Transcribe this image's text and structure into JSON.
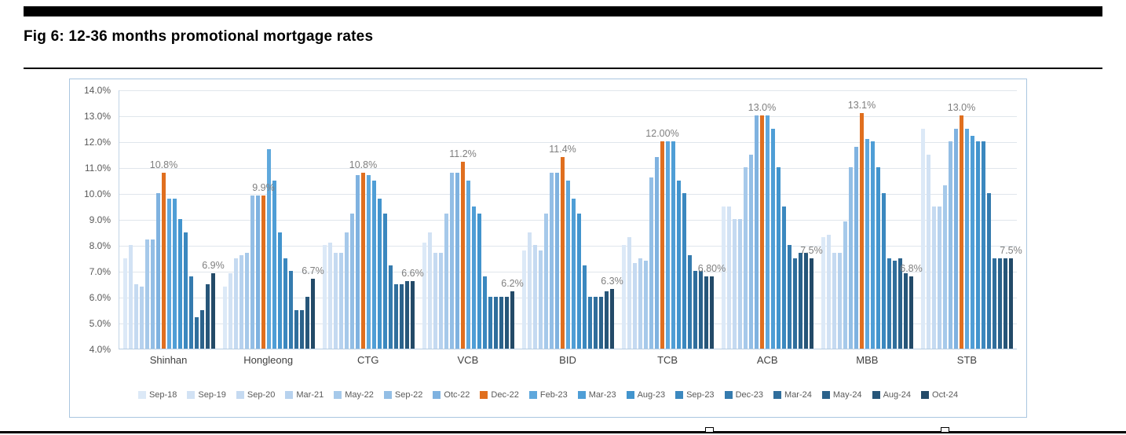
{
  "page": {
    "title": "Fig 6: 12-36 months promotional mortgage rates"
  },
  "colors": {
    "accent_orange": "#e06f1f",
    "axis_text": "#595959",
    "data_label_text": "#7f7f7f",
    "chart_border": "#aac6e0",
    "gridline": "#e0e6ec",
    "rule_black": "#000000"
  },
  "chart_data": {
    "type": "bar",
    "title": "Fig 6: 12-36 months promotional mortgage rates",
    "ylim": [
      4,
      14
    ],
    "ytick_step": 1,
    "yticks": [
      "14.0%",
      "13.0%",
      "12.0%",
      "11.0%",
      "10.0%",
      "9.0%",
      "8.0%",
      "7.0%",
      "6.0%",
      "5.0%",
      "4.0%"
    ],
    "grid": true,
    "legend_position": "bottom",
    "categories": [
      "Shinhan",
      "Hongleong",
      "CTG",
      "VCB",
      "BID",
      "TCB",
      "ACB",
      "MBB",
      "STB"
    ],
    "series": [
      {
        "name": "Sep-18",
        "color": "#dce9f7",
        "values": [
          7.5,
          6.4,
          8.0,
          8.1,
          7.8,
          8.0,
          9.5,
          8.3,
          12.5
        ]
      },
      {
        "name": "Sep-19",
        "color": "#d2e2f4",
        "values": [
          8.0,
          6.9,
          8.1,
          8.5,
          8.5,
          8.3,
          9.5,
          8.4,
          11.5
        ]
      },
      {
        "name": "Sep-20",
        "color": "#c5daf1",
        "values": [
          6.5,
          7.5,
          7.7,
          7.7,
          8.0,
          7.3,
          9.0,
          7.7,
          9.5
        ]
      },
      {
        "name": "Mar-21",
        "color": "#b7d2ee",
        "values": [
          6.4,
          7.6,
          7.7,
          7.7,
          7.8,
          7.5,
          9.0,
          7.7,
          9.5
        ]
      },
      {
        "name": "May-22",
        "color": "#a6c9ea",
        "values": [
          8.2,
          7.7,
          8.5,
          9.2,
          9.2,
          7.4,
          11.0,
          8.9,
          10.3
        ]
      },
      {
        "name": "Sep-22",
        "color": "#93bee5",
        "values": [
          8.2,
          9.9,
          9.2,
          10.8,
          10.8,
          10.6,
          11.5,
          11.0,
          12.0
        ]
      },
      {
        "name": "Otc-22",
        "color": "#7fb2e0",
        "values": [
          10.0,
          9.9,
          10.7,
          10.8,
          10.8,
          11.4,
          13.0,
          11.8,
          12.5
        ]
      },
      {
        "name": "Dec-22",
        "color": "#e06f1f",
        "values": [
          10.8,
          9.9,
          10.8,
          11.2,
          11.4,
          12.0,
          13.0,
          13.1,
          13.0
        ]
      },
      {
        "name": "Feb-23",
        "color": "#5fa8dc",
        "values": [
          9.8,
          11.7,
          10.7,
          10.5,
          10.5,
          12.0,
          13.0,
          12.1,
          12.5
        ]
      },
      {
        "name": "Mar-23",
        "color": "#4f9ed6",
        "values": [
          9.8,
          10.5,
          10.5,
          9.5,
          9.8,
          12.0,
          12.5,
          12.0,
          12.2
        ]
      },
      {
        "name": "Aug-23",
        "color": "#4294cd",
        "values": [
          9.0,
          8.5,
          9.8,
          9.2,
          9.2,
          10.5,
          11.0,
          11.0,
          12.0
        ]
      },
      {
        "name": "Sep-23",
        "color": "#3b88bf",
        "values": [
          8.5,
          7.5,
          9.2,
          6.8,
          7.2,
          10.0,
          9.5,
          10.0,
          12.0
        ]
      },
      {
        "name": "Dec-23",
        "color": "#357bae",
        "values": [
          6.8,
          7.0,
          7.2,
          6.0,
          6.0,
          7.6,
          8.0,
          7.5,
          10.0
        ]
      },
      {
        "name": "Mar-24",
        "color": "#306e9c",
        "values": [
          5.2,
          5.5,
          6.5,
          6.0,
          6.0,
          7.0,
          7.5,
          7.4,
          7.5
        ]
      },
      {
        "name": "May-24",
        "color": "#2b628b",
        "values": [
          5.5,
          5.5,
          6.5,
          6.0,
          6.0,
          7.0,
          7.7,
          7.5,
          7.5
        ]
      },
      {
        "name": "Aug-24",
        "color": "#275679",
        "values": [
          6.5,
          6.0,
          6.6,
          6.0,
          6.2,
          6.8,
          7.7,
          6.9,
          7.5
        ]
      },
      {
        "name": "Oct-24",
        "color": "#234a68",
        "values": [
          6.9,
          6.7,
          6.6,
          6.2,
          6.3,
          6.8,
          7.5,
          6.8,
          7.5
        ]
      }
    ],
    "annotations": [
      {
        "category": "Shinhan",
        "peak_series": "Dec-22",
        "peak_label": "10.8%",
        "end_series": "Oct-24",
        "end_label": "6.9%"
      },
      {
        "category": "Hongleong",
        "peak_series": "Dec-22",
        "peak_label": "9.9%",
        "end_series": "Oct-24",
        "end_label": "6.7%"
      },
      {
        "category": "CTG",
        "peak_series": "Dec-22",
        "peak_label": "10.8%",
        "end_series": "Oct-24",
        "end_label": "6.6%"
      },
      {
        "category": "VCB",
        "peak_series": "Dec-22",
        "peak_label": "11.2%",
        "end_series": "Oct-24",
        "end_label": "6.2%"
      },
      {
        "category": "BID",
        "peak_series": "Dec-22",
        "peak_label": "11.4%",
        "end_series": "Oct-24",
        "end_label": "6.3%"
      },
      {
        "category": "TCB",
        "peak_series": "Dec-22",
        "peak_label": "12.00%",
        "end_series": "Oct-24",
        "end_label": "6.80%"
      },
      {
        "category": "ACB",
        "peak_series": "Dec-22",
        "peak_label": "13.0%",
        "end_series": "Oct-24",
        "end_label": "7.5%"
      },
      {
        "category": "MBB",
        "peak_series": "Dec-22",
        "peak_label": "13.1%",
        "end_series": "Oct-24",
        "end_label": "6.8%"
      },
      {
        "category": "STB",
        "peak_series": "Dec-22",
        "peak_label": "13.0%",
        "end_series": "Oct-24",
        "end_label": "7.5%"
      }
    ]
  }
}
